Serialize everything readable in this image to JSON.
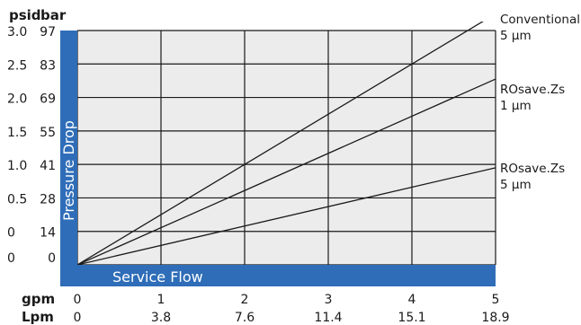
{
  "chart_data": {
    "type": "line",
    "x_units": {
      "gpm_label": "gpm",
      "lpm_label": "Lpm"
    },
    "y_units": {
      "psid_label": "psid",
      "bar_label": "bar"
    },
    "x_ticks_gpm": [
      "0",
      "1",
      "2",
      "3",
      "4",
      "5"
    ],
    "x_ticks_lpm": [
      "0",
      "3.8",
      "7.6",
      "11.4",
      "15.1",
      "18.9"
    ],
    "y_ticks_psid": [
      "0",
      "0",
      "0.5",
      "1.0",
      "1.5",
      "2.0",
      "2.5",
      "3.0"
    ],
    "y_ticks_bar": [
      "0",
      "14",
      "28",
      "41",
      "55",
      "69",
      "83",
      "97"
    ],
    "ylabel": "Pressure Drop",
    "xlabel": "Service Flow",
    "xlim": [
      0,
      5
    ],
    "ylim": [
      0,
      7
    ],
    "grid": true,
    "series": [
      {
        "name": "Conventional 5 µm",
        "label_lines": [
          "Conventional",
          "5 µm"
        ],
        "x": [
          0,
          5
        ],
        "y": [
          0,
          7.5
        ]
      },
      {
        "name": "ROsave.Zs 1 µm",
        "label_lines": [
          "ROsave.Zs",
          "1 µm"
        ],
        "x": [
          0,
          5
        ],
        "y": [
          0,
          5.55
        ]
      },
      {
        "name": "ROsave.Zs 5 µm",
        "label_lines": [
          "ROsave.Zs",
          "5 µm"
        ],
        "x": [
          0,
          5
        ],
        "y": [
          0,
          2.9
        ]
      }
    ],
    "colors": {
      "band": "#2f6db8",
      "plot_bg": "#ececec",
      "grid": "#1a1a1a",
      "line": "#1a1a1a"
    }
  }
}
